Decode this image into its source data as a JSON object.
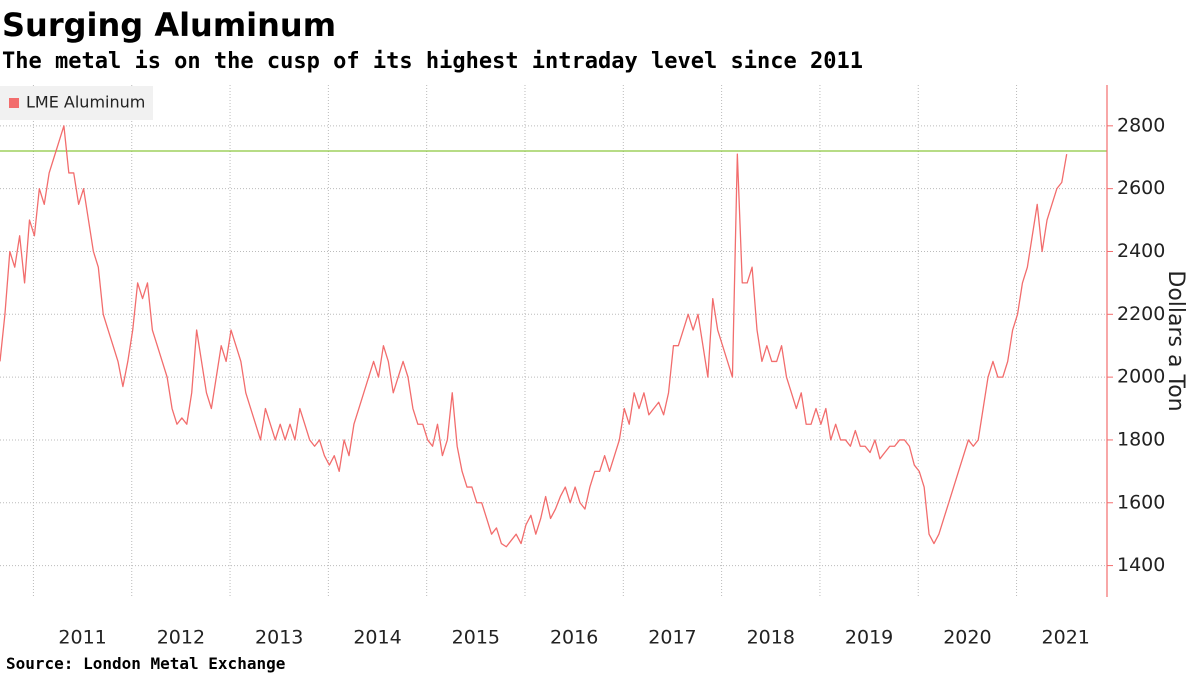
{
  "chart_data": {
    "type": "line",
    "title": "Surging Aluminum",
    "subtitle": "The metal is on the cusp of its highest intraday level since 2011",
    "source": "Source: London Metal Exchange",
    "y_axis_label": "Dollars a Ton",
    "xlim": [
      2010.66,
      2021.92
    ],
    "ylim": [
      1300,
      2930
    ],
    "xticks": [
      2011,
      2012,
      2013,
      2014,
      2015,
      2016,
      2017,
      2018,
      2019,
      2020,
      2021
    ],
    "yticks": [
      1400,
      1600,
      1800,
      2000,
      2200,
      2400,
      2600,
      2800
    ],
    "grid": true,
    "legend": "upper left",
    "reference_line": {
      "value": 2720,
      "color": "#8cc63f"
    },
    "x": [
      2010.66,
      2010.71,
      2010.76,
      2010.81,
      2010.86,
      2010.91,
      2010.96,
      2011.01,
      2011.06,
      2011.11,
      2011.16,
      2011.21,
      2011.26,
      2011.31,
      2011.36,
      2011.41,
      2011.46,
      2011.51,
      2011.56,
      2011.61,
      2011.66,
      2011.71,
      2011.76,
      2011.81,
      2011.86,
      2011.91,
      2011.96,
      2012.01,
      2012.06,
      2012.11,
      2012.16,
      2012.21,
      2012.26,
      2012.31,
      2012.36,
      2012.41,
      2012.46,
      2012.51,
      2012.56,
      2012.61,
      2012.66,
      2012.71,
      2012.76,
      2012.81,
      2012.86,
      2012.91,
      2012.96,
      2013.01,
      2013.06,
      2013.11,
      2013.16,
      2013.21,
      2013.26,
      2013.31,
      2013.36,
      2013.41,
      2013.46,
      2013.51,
      2013.56,
      2013.61,
      2013.66,
      2013.71,
      2013.76,
      2013.81,
      2013.86,
      2013.91,
      2013.96,
      2014.01,
      2014.06,
      2014.11,
      2014.16,
      2014.21,
      2014.26,
      2014.31,
      2014.36,
      2014.41,
      2014.46,
      2014.51,
      2014.56,
      2014.61,
      2014.66,
      2014.71,
      2014.76,
      2014.81,
      2014.86,
      2014.91,
      2014.96,
      2015.01,
      2015.06,
      2015.11,
      2015.16,
      2015.21,
      2015.26,
      2015.31,
      2015.36,
      2015.41,
      2015.46,
      2015.51,
      2015.56,
      2015.61,
      2015.66,
      2015.71,
      2015.76,
      2015.81,
      2015.86,
      2015.91,
      2015.96,
      2016.01,
      2016.06,
      2016.11,
      2016.16,
      2016.21,
      2016.26,
      2016.31,
      2016.36,
      2016.41,
      2016.46,
      2016.51,
      2016.56,
      2016.61,
      2016.66,
      2016.71,
      2016.76,
      2016.81,
      2016.86,
      2016.91,
      2016.96,
      2017.01,
      2017.06,
      2017.11,
      2017.16,
      2017.21,
      2017.26,
      2017.31,
      2017.36,
      2017.41,
      2017.46,
      2017.51,
      2017.56,
      2017.61,
      2017.66,
      2017.71,
      2017.76,
      2017.81,
      2017.86,
      2017.91,
      2017.96,
      2018.01,
      2018.06,
      2018.11,
      2018.16,
      2018.21,
      2018.26,
      2018.31,
      2018.36,
      2018.41,
      2018.46,
      2018.51,
      2018.56,
      2018.61,
      2018.66,
      2018.71,
      2018.76,
      2018.81,
      2018.86,
      2018.91,
      2018.96,
      2019.01,
      2019.06,
      2019.11,
      2019.16,
      2019.21,
      2019.26,
      2019.31,
      2019.36,
      2019.41,
      2019.46,
      2019.51,
      2019.56,
      2019.61,
      2019.66,
      2019.71,
      2019.76,
      2019.81,
      2019.86,
      2019.91,
      2019.96,
      2020.01,
      2020.06,
      2020.11,
      2020.16,
      2020.21,
      2020.26,
      2020.31,
      2020.36,
      2020.41,
      2020.46,
      2020.51,
      2020.56,
      2020.61,
      2020.66,
      2020.71,
      2020.76,
      2020.81,
      2020.86,
      2020.91,
      2020.96,
      2021.01,
      2021.06,
      2021.11,
      2021.16,
      2021.21,
      2021.26,
      2021.31,
      2021.36,
      2021.41,
      2021.46,
      2021.51
    ],
    "series": [
      {
        "name": "LME Aluminum",
        "color": "#f26d6d",
        "values": [
          2050,
          2200,
          2400,
          2350,
          2450,
          2300,
          2500,
          2450,
          2600,
          2550,
          2650,
          2700,
          2750,
          2800,
          2650,
          2650,
          2550,
          2600,
          2500,
          2400,
          2350,
          2200,
          2150,
          2100,
          2050,
          1970,
          2050,
          2150,
          2300,
          2250,
          2300,
          2150,
          2100,
          2050,
          2000,
          1900,
          1850,
          1870,
          1850,
          1950,
          2150,
          2050,
          1950,
          1900,
          2000,
          2100,
          2050,
          2150,
          2100,
          2050,
          1950,
          1900,
          1850,
          1800,
          1900,
          1850,
          1800,
          1850,
          1800,
          1850,
          1800,
          1900,
          1850,
          1800,
          1780,
          1800,
          1750,
          1720,
          1750,
          1700,
          1800,
          1750,
          1850,
          1900,
          1950,
          2000,
          2050,
          2000,
          2100,
          2050,
          1950,
          2000,
          2050,
          2000,
          1900,
          1850,
          1850,
          1800,
          1780,
          1850,
          1750,
          1800,
          1950,
          1780,
          1700,
          1650,
          1650,
          1600,
          1600,
          1550,
          1500,
          1520,
          1470,
          1460,
          1480,
          1500,
          1470,
          1530,
          1560,
          1500,
          1550,
          1620,
          1550,
          1580,
          1620,
          1650,
          1600,
          1650,
          1600,
          1580,
          1650,
          1700,
          1700,
          1750,
          1700,
          1750,
          1800,
          1900,
          1850,
          1950,
          1900,
          1950,
          1880,
          1900,
          1920,
          1880,
          1950,
          2100,
          2100,
          2150,
          2200,
          2150,
          2200,
          2100,
          2000,
          2250,
          2150,
          2100,
          2050,
          2000,
          2710,
          2300,
          2300,
          2350,
          2150,
          2050,
          2100,
          2050,
          2050,
          2100,
          2000,
          1950,
          1900,
          1950,
          1850,
          1850,
          1900,
          1850,
          1900,
          1800,
          1850,
          1800,
          1800,
          1780,
          1830,
          1780,
          1780,
          1760,
          1800,
          1740,
          1760,
          1780,
          1780,
          1800,
          1800,
          1780,
          1720,
          1700,
          1650,
          1500,
          1470,
          1500,
          1550,
          1600,
          1650,
          1700,
          1750,
          1800,
          1780,
          1800,
          1900,
          2000,
          2050,
          2000,
          2000,
          2050,
          2150,
          2200,
          2300,
          2350,
          2450,
          2550,
          2400,
          2500,
          2550,
          2600,
          2620,
          2710
        ]
      }
    ]
  }
}
